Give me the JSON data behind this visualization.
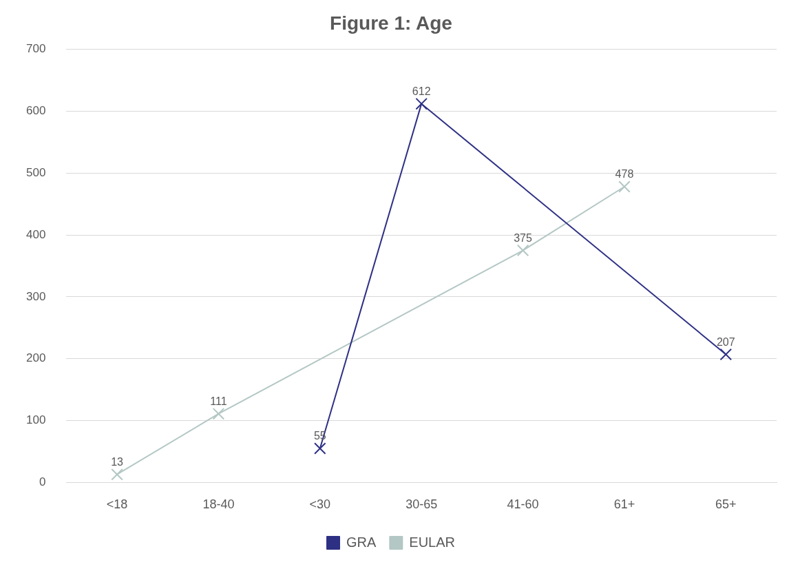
{
  "chart_data": {
    "type": "line",
    "title": "Figure 1: Age",
    "categories": [
      "<18",
      "18-40",
      "<30",
      "30-65",
      "41-60",
      "61+",
      "65+"
    ],
    "series": [
      {
        "name": "GRA",
        "color": "#2e3084",
        "values": [
          null,
          null,
          55,
          612,
          null,
          null,
          207
        ]
      },
      {
        "name": "EULAR",
        "color": "#b3c7c4",
        "values": [
          13,
          111,
          null,
          null,
          375,
          478,
          null
        ]
      }
    ],
    "ylim": [
      0,
      700
    ],
    "yticks": [
      0,
      100,
      200,
      300,
      400,
      500,
      600,
      700
    ],
    "grid": "y",
    "legend": "bottom",
    "marker": "cross",
    "data_labels": true
  }
}
